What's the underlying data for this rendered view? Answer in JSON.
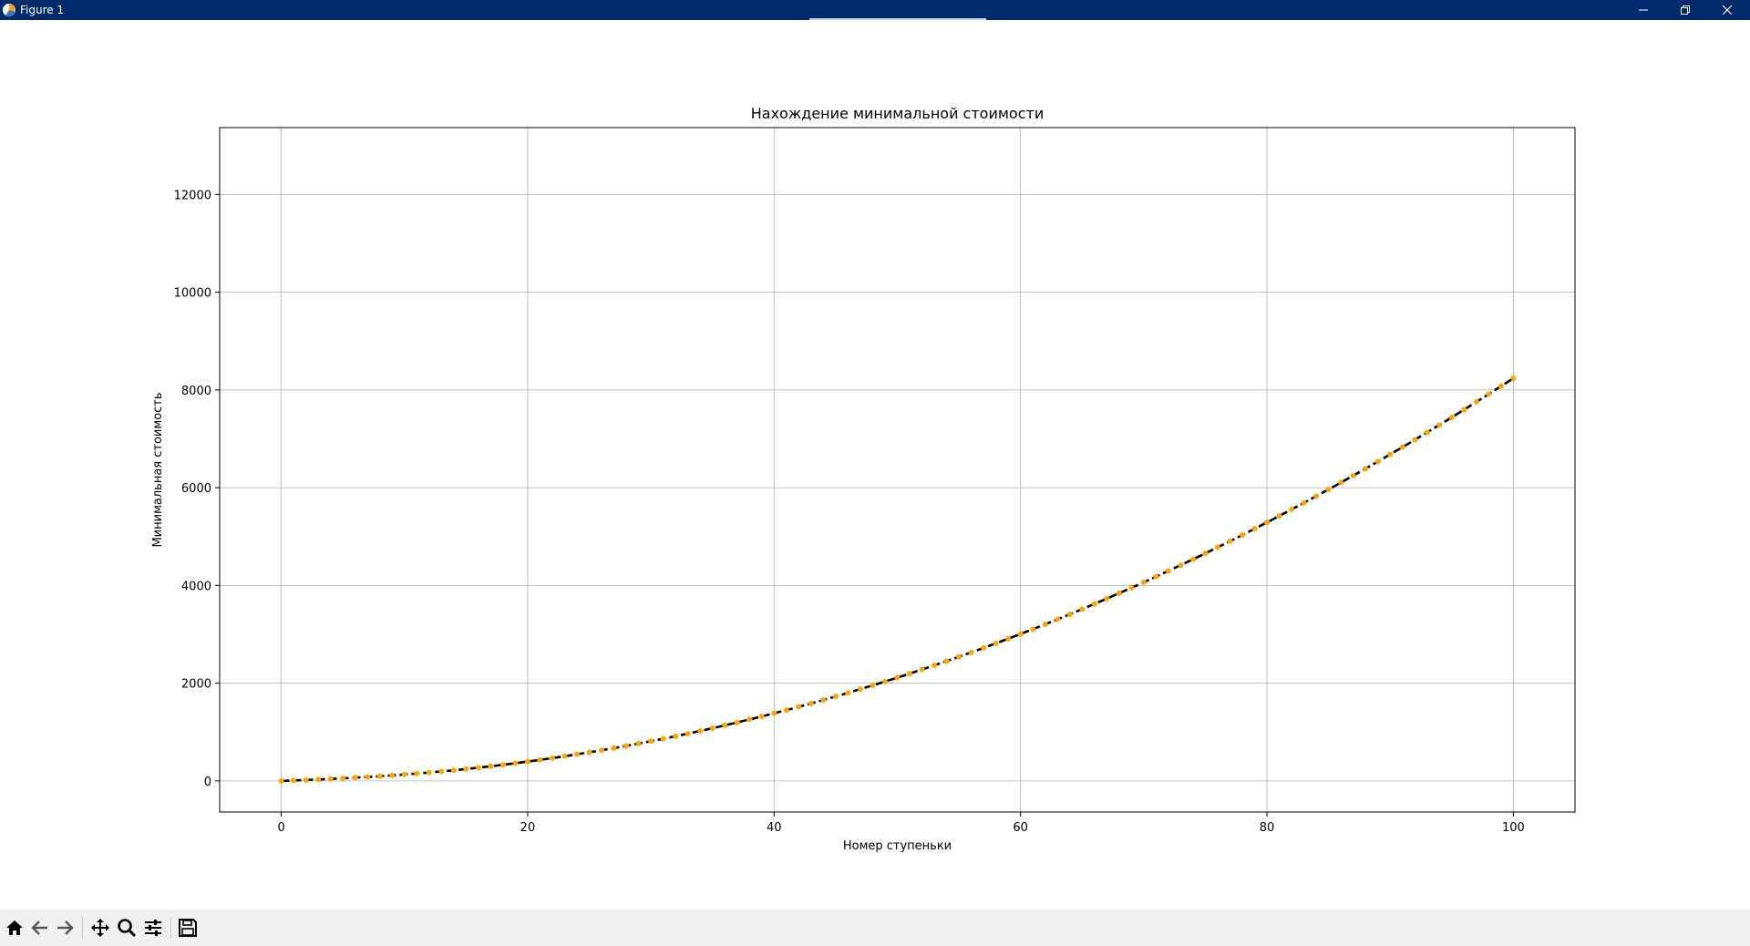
{
  "window": {
    "title": "Figure 1",
    "controls": [
      "minimize-icon",
      "restore-icon",
      "close-icon"
    ]
  },
  "toolbar": {
    "items": [
      "home-icon",
      "back-arrow-icon",
      "forward-arrow-icon",
      "pan-move-icon",
      "zoom-magnifier-icon",
      "configure-subplots-icon",
      "save-floppy-icon"
    ]
  },
  "colors": {
    "titlebar": "#002a6c",
    "line": "#000000",
    "markers": "#ffa500",
    "grid": "#b0b0b0"
  },
  "chart_data": {
    "type": "line",
    "title": "Нахождение минимальной стоимости",
    "xlabel": "Номер ступеньки",
    "ylabel": "Минимальная стоимость",
    "xlim": [
      -5,
      105
    ],
    "ylim": [
      -636,
      13368
    ],
    "xticks": [
      0,
      20,
      40,
      60,
      80,
      100
    ],
    "yticks": [
      0,
      2000,
      4000,
      6000,
      8000,
      10000,
      12000
    ],
    "grid": true,
    "legend": "none",
    "series": [
      {
        "line_color": "#000000",
        "line_style": "dashed",
        "marker": "circle",
        "marker_color": "#ffa500",
        "x": [
          0,
          1,
          2,
          3,
          4,
          5,
          6,
          7,
          8,
          9,
          10,
          11,
          12,
          13,
          14,
          15,
          16,
          17,
          18,
          19,
          20,
          21,
          22,
          23,
          24,
          25,
          26,
          27,
          28,
          29,
          30,
          31,
          32,
          33,
          34,
          35,
          36,
          37,
          38,
          39,
          40,
          41,
          42,
          43,
          44,
          45,
          46,
          47,
          48,
          49,
          50,
          51,
          52,
          53,
          54,
          55,
          56,
          57,
          58,
          59,
          60,
          61,
          62,
          63,
          64,
          65,
          66,
          67,
          68,
          69,
          70,
          71,
          72,
          73,
          74,
          75,
          76,
          77,
          78,
          79,
          80,
          81,
          82,
          83,
          84,
          85,
          86,
          87,
          88,
          89,
          90,
          91,
          92,
          93,
          94,
          95,
          96,
          97,
          98,
          99,
          100
        ],
        "y": [
          0,
          10,
          20,
          30,
          42,
          54,
          68,
          82,
          98,
          114,
          132,
          152,
          172,
          194,
          218,
          244,
          272,
          300,
          330,
          362,
          396,
          431,
          467,
          505,
          545,
          586,
          628,
          672,
          718,
          765,
          813,
          863,
          915,
          968,
          1023,
          1079,
          1137,
          1197,
          1258,
          1320,
          1384,
          1450,
          1517,
          1586,
          1657,
          1729,
          1803,
          1878,
          1955,
          2034,
          2114,
          2196,
          2280,
          2365,
          2452,
          2540,
          2630,
          2722,
          2815,
          2910,
          3007,
          3105,
          3205,
          3307,
          3410,
          3515,
          3622,
          3730,
          3840,
          3952,
          4065,
          4180,
          4297,
          4415,
          4535,
          4657,
          4780,
          4905,
          5032,
          5160,
          5290,
          5422,
          5555,
          5690,
          5827,
          5965,
          6105,
          6247,
          6390,
          6535,
          6682,
          6830,
          6980,
          7132,
          7285,
          7440,
          7597,
          7755,
          7915,
          8077,
          8240
        ]
      }
    ]
  }
}
